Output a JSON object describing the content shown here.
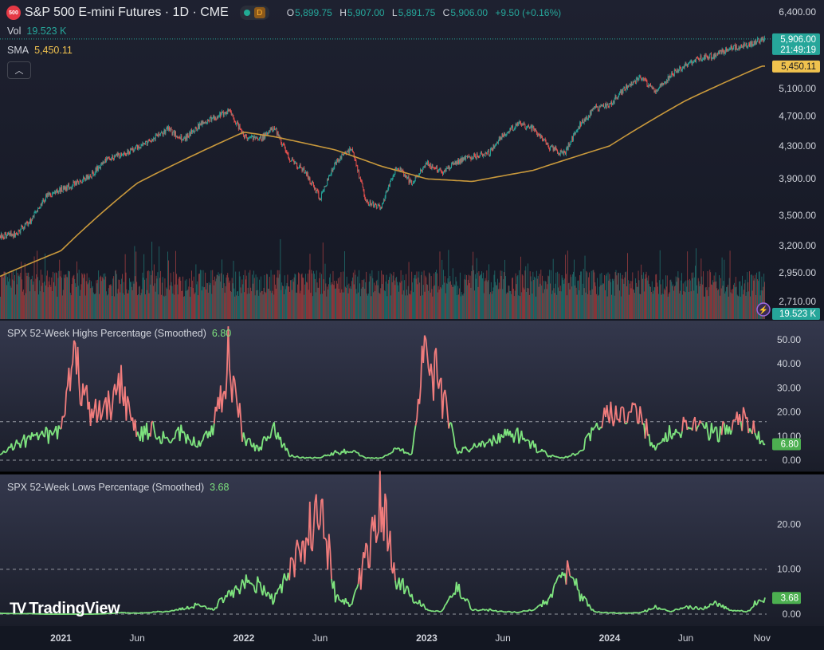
{
  "header": {
    "symbol_badge": "500",
    "title": "S&P 500 E-mini Futures · 1D · CME",
    "market_badge": "D",
    "ohlc": [
      {
        "key": "O",
        "value": "5,899.75"
      },
      {
        "key": "H",
        "value": "5,907.00"
      },
      {
        "key": "L",
        "value": "5,891.75"
      },
      {
        "key": "C",
        "value": "5,906.00"
      }
    ],
    "change": "+9.50 (+0.16%)"
  },
  "legend": {
    "vol_label": "Vol",
    "vol_value": "19.523 K",
    "sma_label": "SMA",
    "sma_value": "5,450.11",
    "highs_label": "SPX 52-Week Highs Percentage (Smoothed)",
    "highs_value": "6.80",
    "lows_label": "SPX 52-Week Lows Percentage (Smoothed)",
    "lows_value": "3.68"
  },
  "branding": {
    "text": "TradingView"
  },
  "colors": {
    "background": "#131722",
    "up": "#26a69a",
    "down": "#ef5350",
    "sma": "#c9993c",
    "indicator_green": "#7ee37e",
    "indicator_red": "#f07c7c",
    "grid": "#2a2e39"
  },
  "chart_data": [
    {
      "type": "candlestick",
      "title": "S&P 500 E-mini Futures · 1D · CME",
      "y_scale": "log",
      "y_ticks": [
        "6,400.00",
        "5,100.00",
        "4,700.00",
        "4,300.00",
        "3,900.00",
        "3,500.00",
        "3,200.00",
        "2,950.00",
        "2,710.00"
      ],
      "x_ticks": [
        "2021",
        "Jun",
        "2022",
        "Jun",
        "2023",
        "Jun",
        "2024",
        "Jun",
        "Nov"
      ],
      "x_range": [
        "2020-09",
        "2024-11"
      ],
      "price_path": [
        [
          "2020-09",
          3290
        ],
        [
          "2020-10",
          3310
        ],
        [
          "2020-11",
          3450
        ],
        [
          "2020-12",
          3700
        ],
        [
          "2021-01",
          3780
        ],
        [
          "2021-02",
          3850
        ],
        [
          "2021-03",
          3950
        ],
        [
          "2021-04",
          4150
        ],
        [
          "2021-05",
          4180
        ],
        [
          "2021-06",
          4290
        ],
        [
          "2021-07",
          4380
        ],
        [
          "2021-08",
          4520
        ],
        [
          "2021-09",
          4380
        ],
        [
          "2021-10",
          4560
        ],
        [
          "2021-11",
          4680
        ],
        [
          "2021-12",
          4760
        ],
        [
          "2022-01",
          4420
        ],
        [
          "2022-02",
          4380
        ],
        [
          "2022-03",
          4530
        ],
        [
          "2022-04",
          4140
        ],
        [
          "2022-05",
          3980
        ],
        [
          "2022-06",
          3680
        ],
        [
          "2022-07",
          4100
        ],
        [
          "2022-08",
          4280
        ],
        [
          "2022-09",
          3640
        ],
        [
          "2022-10",
          3580
        ],
        [
          "2022-11",
          4050
        ],
        [
          "2022-12",
          3840
        ],
        [
          "2023-01",
          4080
        ],
        [
          "2023-02",
          3980
        ],
        [
          "2023-03",
          4110
        ],
        [
          "2023-04",
          4170
        ],
        [
          "2023-05",
          4200
        ],
        [
          "2023-06",
          4450
        ],
        [
          "2023-07",
          4590
        ],
        [
          "2023-08",
          4520
        ],
        [
          "2023-09",
          4290
        ],
        [
          "2023-10",
          4200
        ],
        [
          "2023-11",
          4570
        ],
        [
          "2023-12",
          4800
        ],
        [
          "2024-01",
          4870
        ],
        [
          "2024-02",
          5100
        ],
        [
          "2024-03",
          5270
        ],
        [
          "2024-04",
          5050
        ],
        [
          "2024-05",
          5310
        ],
        [
          "2024-06",
          5480
        ],
        [
          "2024-07",
          5580
        ],
        [
          "2024-08",
          5640
        ],
        [
          "2024-09",
          5750
        ],
        [
          "2024-10",
          5800
        ],
        [
          "2024-11",
          5906
        ]
      ],
      "sma": {
        "label": "SMA",
        "last": "5,450.11",
        "path": [
          [
            "2020-09",
            2920
          ],
          [
            "2021-01",
            3150
          ],
          [
            "2021-06",
            3850
          ],
          [
            "2022-01",
            4480
          ],
          [
            "2022-03",
            4420
          ],
          [
            "2022-07",
            4250
          ],
          [
            "2022-10",
            4050
          ],
          [
            "2023-01",
            3900
          ],
          [
            "2023-04",
            3870
          ],
          [
            "2023-08",
            4000
          ],
          [
            "2024-01",
            4300
          ],
          [
            "2024-06",
            4920
          ],
          [
            "2024-11",
            5450
          ]
        ]
      },
      "last_price": "5,906.00",
      "countdown": "21:49:19",
      "sma_price_label": "5,450.11"
    },
    {
      "type": "bar",
      "title": "Vol",
      "last": "19.523 K",
      "x_range": [
        "2020-09",
        "2024-11"
      ]
    },
    {
      "type": "line",
      "title": "SPX 52-Week Highs Percentage (Smoothed)",
      "last": "6.80",
      "y_ticks": [
        "50.00",
        "40.00",
        "30.00",
        "20.00",
        "10.00",
        "0.00"
      ],
      "ylim": [
        0,
        52
      ],
      "reference_level": 16,
      "points": [
        [
          "2020-09",
          3
        ],
        [
          "2020-10",
          6
        ],
        [
          "2020-11",
          9
        ],
        [
          "2020-12",
          10
        ],
        [
          "2021-01",
          12
        ],
        [
          "2021-02",
          43
        ],
        [
          "2021-03",
          18
        ],
        [
          "2021-04",
          22
        ],
        [
          "2021-05",
          30
        ],
        [
          "2021-06",
          11
        ],
        [
          "2021-07",
          12
        ],
        [
          "2021-08",
          8
        ],
        [
          "2021-09",
          12
        ],
        [
          "2021-10",
          6
        ],
        [
          "2021-11",
          14
        ],
        [
          "2021-12",
          42
        ],
        [
          "2022-01",
          8
        ],
        [
          "2022-02",
          5
        ],
        [
          "2022-03",
          12
        ],
        [
          "2022-04",
          2
        ],
        [
          "2022-05",
          1
        ],
        [
          "2022-06",
          1
        ],
        [
          "2022-07",
          3
        ],
        [
          "2022-08",
          4
        ],
        [
          "2022-09",
          1
        ],
        [
          "2022-10",
          1
        ],
        [
          "2022-11",
          5
        ],
        [
          "2022-12",
          2
        ],
        [
          "2023-01",
          50
        ],
        [
          "2023-02",
          28
        ],
        [
          "2023-03",
          3
        ],
        [
          "2023-04",
          6
        ],
        [
          "2023-05",
          7
        ],
        [
          "2023-06",
          10
        ],
        [
          "2023-07",
          12
        ],
        [
          "2023-08",
          6
        ],
        [
          "2023-09",
          2
        ],
        [
          "2023-10",
          1
        ],
        [
          "2023-11",
          3
        ],
        [
          "2023-12",
          13
        ],
        [
          "2024-01",
          20
        ],
        [
          "2024-02",
          18
        ],
        [
          "2024-03",
          19
        ],
        [
          "2024-04",
          4
        ],
        [
          "2024-05",
          12
        ],
        [
          "2024-06",
          14
        ],
        [
          "2024-07",
          13
        ],
        [
          "2024-08",
          11
        ],
        [
          "2024-09",
          15
        ],
        [
          "2024-10",
          18
        ],
        [
          "2024-11",
          6.8
        ]
      ]
    },
    {
      "type": "line",
      "title": "SPX 52-Week Lows Percentage (Smoothed)",
      "last": "3.68",
      "y_ticks": [
        "20.00",
        "10.00",
        "0.00"
      ],
      "ylim": [
        0,
        27
      ],
      "reference_level": 10,
      "points": [
        [
          "2020-09",
          0.2
        ],
        [
          "2020-10",
          0.1
        ],
        [
          "2020-11",
          0.1
        ],
        [
          "2020-12",
          0
        ],
        [
          "2021-01",
          0
        ],
        [
          "2021-02",
          0
        ],
        [
          "2021-03",
          0
        ],
        [
          "2021-04",
          0.1
        ],
        [
          "2021-05",
          0.3
        ],
        [
          "2021-06",
          0.2
        ],
        [
          "2021-07",
          0.4
        ],
        [
          "2021-08",
          0.6
        ],
        [
          "2021-09",
          1.2
        ],
        [
          "2021-10",
          2
        ],
        [
          "2021-11",
          1
        ],
        [
          "2021-12",
          5
        ],
        [
          "2022-01",
          7
        ],
        [
          "2022-02",
          6
        ],
        [
          "2022-03",
          3
        ],
        [
          "2022-04",
          10
        ],
        [
          "2022-05",
          15
        ],
        [
          "2022-06",
          26
        ],
        [
          "2022-07",
          4
        ],
        [
          "2022-08",
          2
        ],
        [
          "2022-09",
          12
        ],
        [
          "2022-10",
          24
        ],
        [
          "2022-11",
          8
        ],
        [
          "2022-12",
          4
        ],
        [
          "2023-01",
          1
        ],
        [
          "2023-02",
          0.5
        ],
        [
          "2023-03",
          6
        ],
        [
          "2023-04",
          1
        ],
        [
          "2023-05",
          1
        ],
        [
          "2023-06",
          0.5
        ],
        [
          "2023-07",
          0.4
        ],
        [
          "2023-08",
          1
        ],
        [
          "2023-09",
          3
        ],
        [
          "2023-10",
          10
        ],
        [
          "2023-11",
          5
        ],
        [
          "2023-12",
          0.5
        ],
        [
          "2024-01",
          0.3
        ],
        [
          "2024-02",
          0.2
        ],
        [
          "2024-03",
          0.3
        ],
        [
          "2024-04",
          1.5
        ],
        [
          "2024-05",
          0.6
        ],
        [
          "2024-06",
          1.5
        ],
        [
          "2024-07",
          1.3
        ],
        [
          "2024-08",
          2.2
        ],
        [
          "2024-09",
          0.8
        ],
        [
          "2024-10",
          0.5
        ],
        [
          "2024-11",
          3.68
        ]
      ]
    }
  ]
}
